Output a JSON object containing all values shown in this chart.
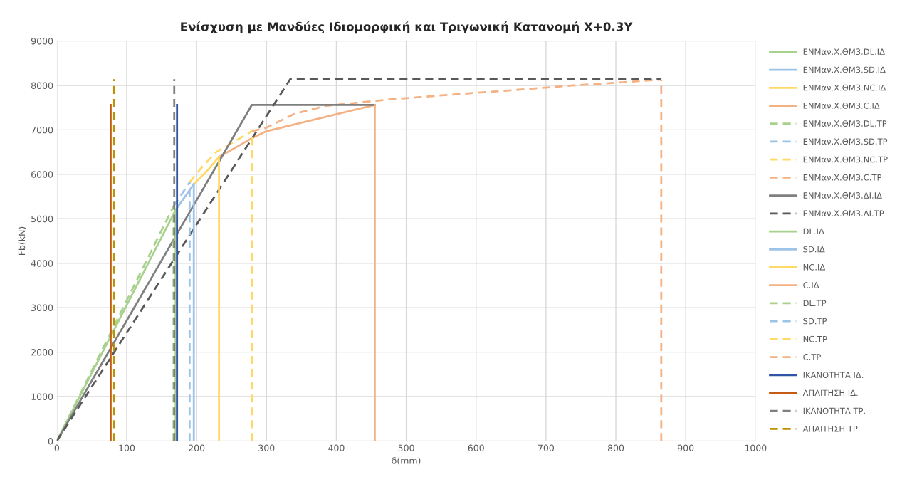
{
  "chart_data": {
    "type": "line",
    "title": "Ενίσχυση με Μανδύες Ιδιομορφική και Τριγωνική Κατανομή Χ+0.3Υ",
    "xlabel": "δ(mm)",
    "ylabel": "Fb(kN)",
    "xlim": [
      0,
      1000
    ],
    "xticks": [
      0,
      100,
      200,
      300,
      400,
      500,
      600,
      700,
      800,
      900,
      1000
    ],
    "ylim": [
      0,
      9000
    ],
    "yticks": [
      0,
      1000,
      2000,
      3000,
      4000,
      5000,
      6000,
      7000,
      8000,
      9000
    ],
    "grid": true,
    "legend": "right",
    "marker": "none",
    "series": [
      {
        "name": "ΕΝΜαν.Χ.ΘΜ3.DL.ΙΔ",
        "color": "#a9d18e",
        "line_style": "solid",
        "x": [
          0,
          170
        ],
        "values": [
          0,
          5200
        ]
      },
      {
        "name": "ΕΝΜαν.Χ.ΘΜ3.SD.ΙΔ",
        "color": "#9dc3e6",
        "line_style": "solid",
        "x": [
          170,
          196
        ],
        "values": [
          5200,
          5780
        ]
      },
      {
        "name": "ΕΝΜαν.Χ.ΘΜ3.NC.ΙΔ",
        "color": "#ffd966",
        "line_style": "solid",
        "x": [
          196,
          215,
          232
        ],
        "values": [
          5780,
          6080,
          6390
        ]
      },
      {
        "name": "ΕΝΜαν.Χ.ΘΜ3.C.ΙΔ",
        "color": "#f4b183",
        "line_style": "solid",
        "x": [
          232,
          260,
          280,
          300,
          455
        ],
        "values": [
          6390,
          6640,
          6820,
          6970,
          7560
        ]
      },
      {
        "name": "ΕΝΜαν.Χ.ΘΜ3.DL.ΤΡ",
        "color": "#a9d18e",
        "line_style": "dashed",
        "x": [
          0,
          167
        ],
        "values": [
          0,
          5280
        ]
      },
      {
        "name": "ΕΝΜαν.Χ.ΘΜ3.SD.ΤΡ",
        "color": "#9dc3e6",
        "line_style": "dashed",
        "x": [
          167,
          190
        ],
        "values": [
          5280,
          5820
        ]
      },
      {
        "name": "ΕΝΜαν.Χ.ΘΜ3.NC.ΤΡ",
        "color": "#ffd966",
        "line_style": "dashed",
        "x": [
          190,
          207,
          228,
          250,
          279
        ],
        "values": [
          5820,
          6150,
          6500,
          6700,
          6970
        ]
      },
      {
        "name": "ΕΝΜαν.Χ.ΘΜ3.C.ΤΡ",
        "color": "#f4b183",
        "line_style": "dashed",
        "x": [
          279,
          300,
          340,
          385,
          473,
          562,
          650,
          739,
          810,
          865
        ],
        "values": [
          6970,
          7050,
          7360,
          7540,
          7680,
          7790,
          7890,
          8000,
          8070,
          8130
        ]
      },
      {
        "name": "ΕΝΜαν.Χ.ΘΜ3.ΔΙ.ΙΔ",
        "color": "#7f7f7f",
        "line_style": "solid",
        "x": [
          0,
          279,
          455
        ],
        "values": [
          0,
          7560,
          7560
        ]
      },
      {
        "name": "ΕΝΜαν.Χ.ΘΜ3.ΔΙ.ΤΡ",
        "color": "#595959",
        "line_style": "dashed",
        "x": [
          0,
          334,
          865
        ],
        "values": [
          0,
          8140,
          8140
        ]
      },
      {
        "name": "DL.ΙΔ",
        "color": "#a9d18e",
        "line_style": "solid",
        "x": [
          170,
          170
        ],
        "values": [
          0,
          5200
        ]
      },
      {
        "name": "SD.ΙΔ",
        "color": "#9dc3e6",
        "line_style": "solid",
        "x": [
          196,
          196
        ],
        "values": [
          0,
          5780
        ]
      },
      {
        "name": "NC.ΙΔ",
        "color": "#ffd966",
        "line_style": "solid",
        "x": [
          232,
          232
        ],
        "values": [
          0,
          6390
        ]
      },
      {
        "name": "C.ΙΔ",
        "color": "#f4b183",
        "line_style": "solid",
        "x": [
          455,
          455
        ],
        "values": [
          0,
          7560
        ]
      },
      {
        "name": "DL.ΤΡ",
        "color": "#a9d18e",
        "line_style": "dashed",
        "x": [
          167,
          167
        ],
        "values": [
          0,
          5280
        ]
      },
      {
        "name": "SD.ΤΡ",
        "color": "#9dc3e6",
        "line_style": "dashed",
        "x": [
          190,
          190
        ],
        "values": [
          0,
          5820
        ]
      },
      {
        "name": "NC.ΤΡ",
        "color": "#ffd966",
        "line_style": "dashed",
        "x": [
          279,
          279
        ],
        "values": [
          0,
          6970
        ]
      },
      {
        "name": "C.ΤΡ",
        "color": "#f4b183",
        "line_style": "dashed",
        "x": [
          865,
          865
        ],
        "values": [
          0,
          8130
        ]
      },
      {
        "name": "ΙΚΑΝΟΤΗΤΑ ΙΔ.",
        "color": "#2f55a4",
        "line_style": "solid",
        "x": [
          172,
          172
        ],
        "values": [
          0,
          7560
        ]
      },
      {
        "name": "ΑΠΑΙΤΗΣΗ ΙΔ.",
        "color": "#c55a11",
        "line_style": "solid",
        "x": [
          77,
          77
        ],
        "values": [
          0,
          7560
        ]
      },
      {
        "name": "ΙΚΑΝΟΤΗΤΑ ΤΡ.",
        "color": "#7f7f7f",
        "line_style": "dashed",
        "x": [
          168,
          168
        ],
        "values": [
          0,
          8140
        ]
      },
      {
        "name": "ΑΠΑΙΤΗΣΗ ΤΡ.",
        "color": "#bf9000",
        "line_style": "dashed",
        "x": [
          82,
          82
        ],
        "values": [
          0,
          8140
        ]
      }
    ]
  }
}
